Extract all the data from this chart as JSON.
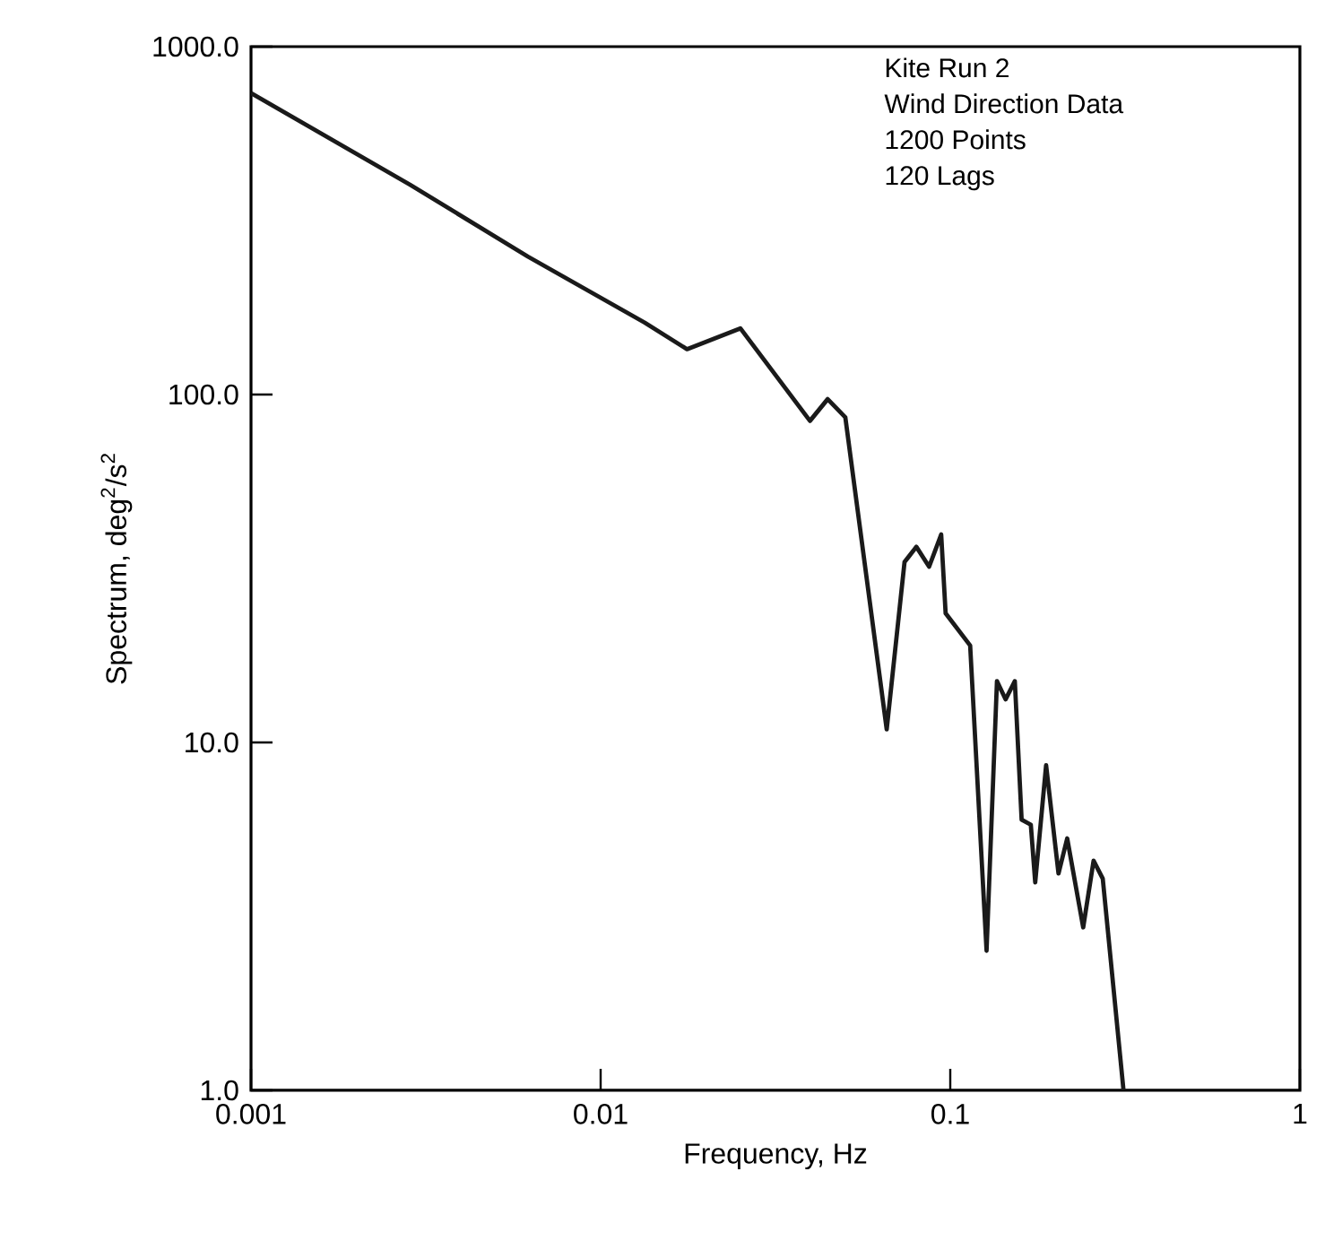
{
  "chart_data": {
    "type": "line",
    "xlabel": "Frequency, Hz",
    "ylabel": "Spectrum, deg$^{2}$/s$^{2}$",
    "annotations": [
      "Kite Run 2",
      "Wind Direction Data",
      "1200 Points",
      "120 Lags"
    ],
    "log": "xy",
    "color": "#1a1a1a",
    "line_style": "solid",
    "xlim": [
      0.001,
      1
    ],
    "ylim": [
      1,
      1000
    ],
    "xticks": [
      0.001,
      0.01,
      0.1,
      1
    ],
    "yticks": [
      {
        "value": 1,
        "label": "1.0"
      },
      {
        "value": 10,
        "label": "10.0"
      },
      {
        "value": 100,
        "label": "100.0"
      },
      {
        "value": 1000,
        "label": "1000.0"
      }
    ],
    "x": [
      0.001,
      0.00285,
      0.0062,
      0.01336,
      0.01766,
      0.0251,
      0.0397,
      0.0446,
      0.0501,
      0.0658,
      0.074,
      0.08,
      0.087,
      0.0942,
      0.097,
      0.114,
      0.127,
      0.136,
      0.144,
      0.153,
      0.16,
      0.17,
      0.175,
      0.188,
      0.204,
      0.216,
      0.24,
      0.257,
      0.273,
      0.313
    ],
    "values": [
      735,
      401,
      249,
      161,
      135,
      155,
      84,
      97,
      86,
      10.9,
      33,
      36.5,
      32,
      39.6,
      23.5,
      19.0,
      2.52,
      15.0,
      13.3,
      15.0,
      6.0,
      5.8,
      3.96,
      8.6,
      4.2,
      5.3,
      2.94,
      4.57,
      4.06,
      1.0
    ]
  }
}
